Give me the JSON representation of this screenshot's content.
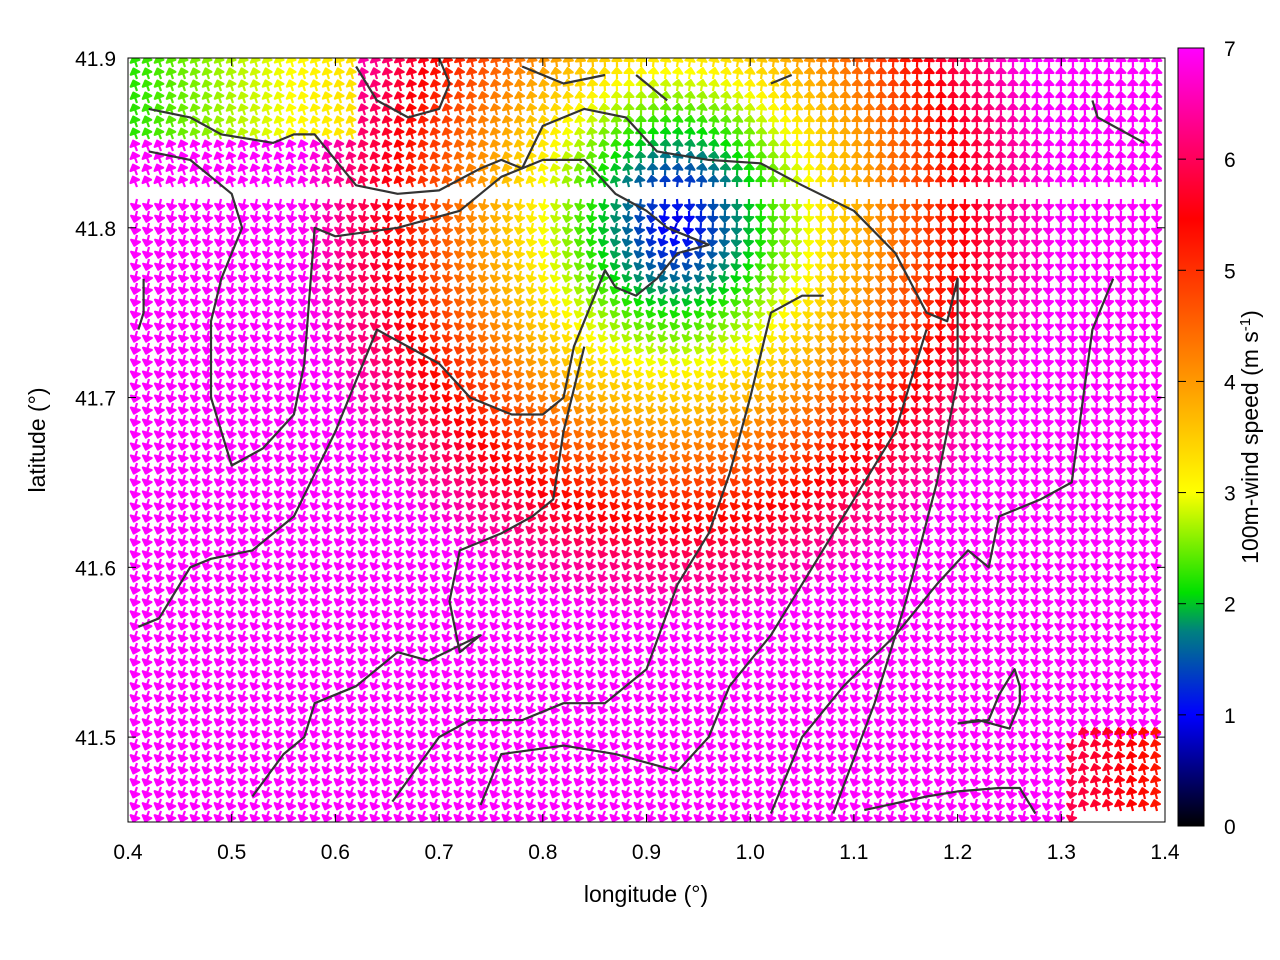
{
  "chart_data": {
    "type": "vector-field",
    "title": "",
    "xlabel": "longitude (°)",
    "ylabel": "latitude (°)",
    "colorbar": {
      "label": "100m-wind speed (m s",
      "label_sup": "-1",
      "label_end": ")",
      "range": [
        0,
        7
      ],
      "ticks": [
        "0",
        "1",
        "2",
        "3",
        "4",
        "5",
        "6",
        "7"
      ],
      "palette": "black-blue-green-yellow-orange-red-magenta"
    },
    "xlim": [
      0.4,
      1.4
    ],
    "ylim": [
      41.45,
      41.9
    ],
    "xticks": [
      {
        "value": 0.4,
        "label": "0.4"
      },
      {
        "value": 0.5,
        "label": "0.5"
      },
      {
        "value": 0.6,
        "label": "0.6"
      },
      {
        "value": 0.7,
        "label": "0.7"
      },
      {
        "value": 0.8,
        "label": "0.8"
      },
      {
        "value": 0.9,
        "label": "0.9"
      },
      {
        "value": 1.0,
        "label": "1.0"
      },
      {
        "value": 1.1,
        "label": "1.1"
      },
      {
        "value": 1.2,
        "label": "1.2"
      },
      {
        "value": 1.3,
        "label": "1.3"
      },
      {
        "value": 1.4,
        "label": "1.4"
      }
    ],
    "yticks": [
      {
        "value": 41.5,
        "label": "41.5"
      },
      {
        "value": 41.6,
        "label": "41.6"
      },
      {
        "value": 41.7,
        "label": "41.7"
      },
      {
        "value": 41.8,
        "label": "41.8"
      },
      {
        "value": 41.9,
        "label": "41.9"
      }
    ],
    "wind_field": {
      "low_speed_center": [
        0.93,
        41.805
      ],
      "flow": "southward away from low-speed center, speeds up to 7 m/s over most of the domain"
    },
    "contours": [
      [
        [
          0.42,
          41.87
        ],
        [
          0.46,
          41.865
        ],
        [
          0.49,
          41.855
        ],
        [
          0.54,
          41.85
        ],
        [
          0.56,
          41.855
        ],
        [
          0.58,
          41.855
        ],
        [
          0.6,
          41.84
        ],
        [
          0.62,
          41.825
        ],
        [
          0.66,
          41.82
        ],
        [
          0.7,
          41.822
        ],
        [
          0.74,
          41.835
        ],
        [
          0.76,
          41.84
        ],
        [
          0.78,
          41.835
        ],
        [
          0.8,
          41.86
        ],
        [
          0.84,
          41.87
        ],
        [
          0.88,
          41.865
        ],
        [
          0.91,
          41.845
        ],
        [
          0.96,
          41.84
        ],
        [
          1.01,
          41.838
        ],
        [
          1.05,
          41.825
        ],
        [
          1.1,
          41.81
        ],
        [
          1.14,
          41.785
        ],
        [
          1.17,
          41.75
        ],
        [
          1.19,
          41.745
        ],
        [
          1.2,
          41.77
        ],
        [
          1.2,
          41.71
        ],
        [
          1.18,
          41.65
        ],
        [
          1.15,
          41.58
        ],
        [
          1.12,
          41.52
        ],
        [
          1.08,
          41.455
        ]
      ],
      [
        [
          0.42,
          41.845
        ],
        [
          0.46,
          41.84
        ],
        [
          0.5,
          41.82
        ],
        [
          0.51,
          41.8
        ],
        [
          0.49,
          41.77
        ],
        [
          0.48,
          41.745
        ],
        [
          0.48,
          41.7
        ],
        [
          0.5,
          41.66
        ],
        [
          0.53,
          41.67
        ],
        [
          0.56,
          41.69
        ],
        [
          0.57,
          41.72
        ],
        [
          0.58,
          41.8
        ],
        [
          0.6,
          41.795
        ],
        [
          0.66,
          41.8
        ],
        [
          0.72,
          41.81
        ],
        [
          0.76,
          41.83
        ],
        [
          0.78,
          41.835
        ],
        [
          0.8,
          41.84
        ],
        [
          0.84,
          41.84
        ],
        [
          0.87,
          41.82
        ],
        [
          0.9,
          41.81
        ],
        [
          0.92,
          41.8
        ],
        [
          0.96,
          41.79
        ],
        [
          0.93,
          41.785
        ],
        [
          0.91,
          41.77
        ],
        [
          0.89,
          41.76
        ],
        [
          0.87,
          41.765
        ],
        [
          0.86,
          41.775
        ],
        [
          0.85,
          41.76
        ],
        [
          0.83,
          41.73
        ],
        [
          0.82,
          41.7
        ],
        [
          0.8,
          41.69
        ],
        [
          0.77,
          41.69
        ],
        [
          0.73,
          41.7
        ],
        [
          0.7,
          41.72
        ],
        [
          0.64,
          41.74
        ],
        [
          0.6,
          41.68
        ],
        [
          0.56,
          41.63
        ],
        [
          0.52,
          41.61
        ],
        [
          0.48,
          41.605
        ],
        [
          0.46,
          41.6
        ],
        [
          0.43,
          41.57
        ],
        [
          0.41,
          41.565
        ]
      ],
      [
        [
          0.84,
          41.73
        ],
        [
          0.82,
          41.68
        ],
        [
          0.81,
          41.64
        ],
        [
          0.79,
          41.63
        ],
        [
          0.76,
          41.62
        ],
        [
          0.72,
          41.61
        ],
        [
          0.71,
          41.58
        ],
        [
          0.72,
          41.55
        ],
        [
          0.74,
          41.56
        ],
        [
          0.69,
          41.545
        ],
        [
          0.66,
          41.55
        ],
        [
          0.62,
          41.53
        ],
        [
          0.58,
          41.52
        ],
        [
          0.57,
          41.5
        ],
        [
          0.55,
          41.49
        ],
        [
          0.52,
          41.465
        ]
      ],
      [
        [
          0.655,
          41.462
        ],
        [
          0.7,
          41.5
        ],
        [
          0.73,
          41.51
        ],
        [
          0.78,
          41.51
        ],
        [
          0.82,
          41.52
        ],
        [
          0.86,
          41.52
        ],
        [
          0.9,
          41.54
        ],
        [
          0.93,
          41.59
        ],
        [
          0.96,
          41.62
        ],
        [
          0.98,
          41.655
        ],
        [
          1.0,
          41.7
        ],
        [
          1.02,
          41.75
        ],
        [
          1.05,
          41.76
        ],
        [
          1.07,
          41.76
        ],
        [
          1.05,
          41.76
        ]
      ],
      [
        [
          0.74,
          41.46
        ],
        [
          0.76,
          41.49
        ],
        [
          0.82,
          41.495
        ],
        [
          0.87,
          41.49
        ],
        [
          0.93,
          41.48
        ],
        [
          0.96,
          41.5
        ],
        [
          0.98,
          41.53
        ],
        [
          1.02,
          41.56
        ],
        [
          1.06,
          41.6
        ],
        [
          1.1,
          41.64
        ],
        [
          1.14,
          41.68
        ],
        [
          1.16,
          41.72
        ],
        [
          1.17,
          41.74
        ]
      ],
      [
        [
          1.02,
          41.455
        ],
        [
          1.05,
          41.5
        ],
        [
          1.09,
          41.53
        ],
        [
          1.14,
          41.56
        ],
        [
          1.18,
          41.59
        ],
        [
          1.21,
          41.61
        ],
        [
          1.23,
          41.6
        ],
        [
          1.24,
          41.63
        ],
        [
          1.28,
          41.64
        ],
        [
          1.31,
          41.65
        ],
        [
          1.33,
          41.74
        ],
        [
          1.35,
          41.77
        ]
      ],
      [
        [
          1.11,
          41.457
        ],
        [
          1.17,
          41.465
        ],
        [
          1.2,
          41.468
        ],
        [
          1.24,
          41.47
        ],
        [
          1.26,
          41.47
        ],
        [
          1.275,
          41.455
        ]
      ],
      [
        [
          1.2,
          41.508
        ],
        [
          1.22,
          41.51
        ],
        [
          1.25,
          41.505
        ],
        [
          1.26,
          41.52
        ],
        [
          1.26,
          41.53
        ],
        [
          1.255,
          41.54
        ],
        [
          1.24,
          41.525
        ],
        [
          1.23,
          41.51
        ],
        [
          1.2,
          41.508
        ]
      ],
      [
        [
          1.33,
          41.875
        ],
        [
          1.335,
          41.865
        ],
        [
          1.38,
          41.85
        ]
      ],
      [
        [
          0.62,
          41.895
        ],
        [
          0.64,
          41.875
        ],
        [
          0.67,
          41.865
        ],
        [
          0.7,
          41.87
        ],
        [
          0.71,
          41.885
        ],
        [
          0.7,
          41.9
        ]
      ],
      [
        [
          0.78,
          41.895
        ],
        [
          0.82,
          41.885
        ],
        [
          0.86,
          41.89
        ]
      ],
      [
        [
          0.89,
          41.89
        ],
        [
          0.92,
          41.875
        ]
      ],
      [
        [
          1.02,
          41.885
        ],
        [
          1.04,
          41.89
        ]
      ],
      [
        [
          0.415,
          41.77
        ],
        [
          0.415,
          41.75
        ],
        [
          0.41,
          41.74
        ]
      ]
    ]
  }
}
